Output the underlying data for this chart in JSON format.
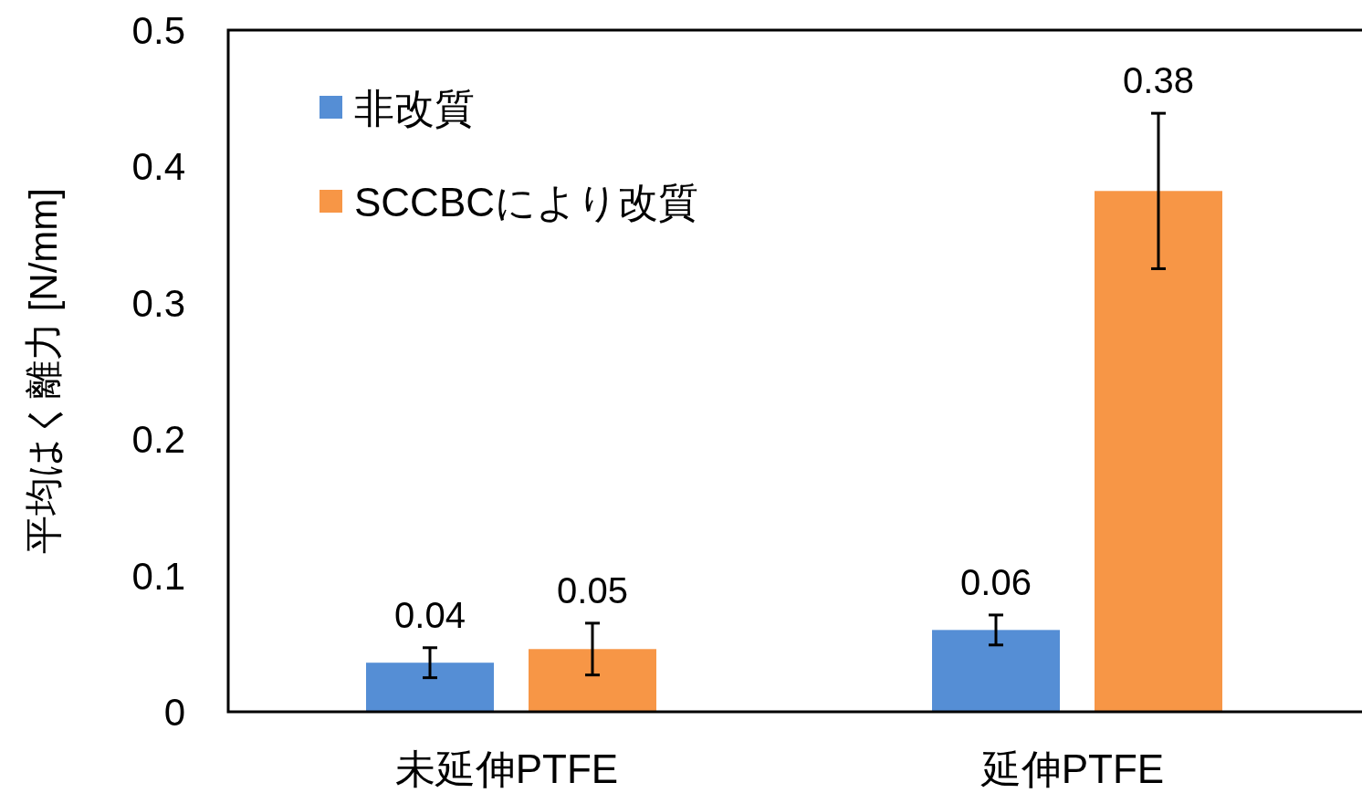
{
  "chart_data": {
    "type": "bar",
    "ylabel": "平均はく離力 [N/mm]",
    "categories": [
      "未延伸PTFE",
      "延伸PTFE"
    ],
    "series": [
      {
        "name": "非改質",
        "color": "#558ed5",
        "values": [
          0.036,
          0.06
        ],
        "errors": [
          0.011,
          0.011
        ],
        "value_labels": [
          "0.04",
          "0.06"
        ]
      },
      {
        "name": "SCCBCにより改質",
        "color": "#f79646",
        "values": [
          0.046,
          0.382
        ],
        "errors": [
          0.019,
          0.057
        ],
        "value_labels": [
          "0.05",
          "0.38"
        ]
      }
    ],
    "ylim": [
      0,
      0.5
    ],
    "yticks": [
      0,
      0.1,
      0.2,
      0.3,
      0.4,
      0.5
    ],
    "legend": "top left",
    "grid": false
  }
}
